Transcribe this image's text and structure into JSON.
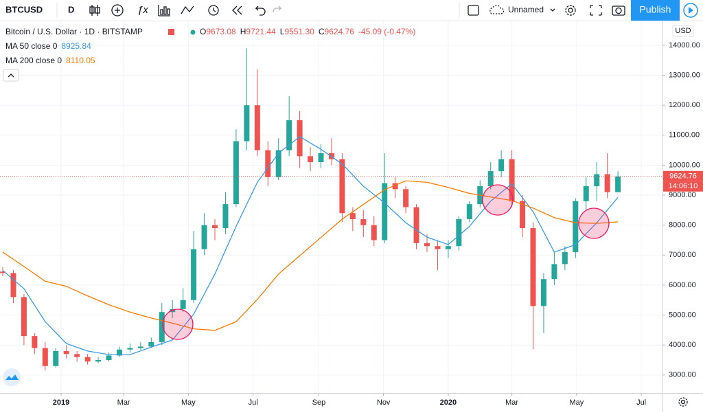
{
  "toolbar": {
    "symbol": "BTCUSD",
    "interval": "D",
    "layout_name": "Unnamed",
    "publish": "Publish"
  },
  "chart_data": {
    "type": "candlestick",
    "title": "Bitcoin / U.S. Dollar · 1D · BITSTAMP",
    "ohlc_legend": {
      "labels": [
        "O",
        "H",
        "L",
        "C"
      ],
      "values": [
        "9673.08",
        "9721.44",
        "9551.30",
        "9624.76"
      ],
      "change": "-45.09 (-0.47%)"
    },
    "currency": "USD",
    "countdown": "14:06:10",
    "up_color": "#26a69a",
    "down_color": "#ef5350",
    "candles": {
      "x": [
        -55,
        -45,
        -35,
        -25,
        -15,
        -5,
        5,
        15,
        25,
        35,
        45,
        55,
        65,
        75,
        85,
        95,
        105,
        115,
        125,
        135,
        145,
        155,
        165,
        175,
        185,
        195,
        205,
        215,
        225,
        235,
        245,
        255,
        265,
        275,
        285,
        295,
        305,
        315,
        325,
        335,
        345,
        355,
        365,
        375,
        385,
        395,
        405,
        415,
        425,
        435,
        445,
        455,
        465,
        475,
        485,
        495,
        505,
        515,
        525
      ],
      "open": [
        6450,
        6400,
        5600,
        4300,
        3900,
        3300,
        3800,
        3700,
        3600,
        3450,
        3500,
        3650,
        3850,
        3900,
        3950,
        4100,
        5100,
        5200,
        5500,
        7200,
        8000,
        7900,
        8700,
        10800,
        12000,
        10500,
        9600,
        10500,
        11500,
        10300,
        10100,
        10400,
        10200,
        8400,
        8200,
        8000,
        7500,
        9400,
        9200,
        8600,
        7400,
        7300,
        7200,
        7300,
        8200,
        8700,
        9300,
        9800,
        10200,
        8800,
        7900,
        5300,
        6200,
        6700,
        7100,
        8800,
        9300,
        9700,
        9100
      ],
      "high": [
        6600,
        6500,
        5700,
        4400,
        4100,
        3900,
        4000,
        3800,
        3700,
        3600,
        3750,
        3950,
        4050,
        4100,
        4250,
        5400,
        5500,
        5900,
        7800,
        8400,
        8200,
        9100,
        11200,
        13900,
        13200,
        10800,
        10900,
        12300,
        11800,
        10600,
        10700,
        10900,
        10400,
        8600,
        8500,
        8300,
        10400,
        9600,
        9300,
        8700,
        7700,
        7500,
        7500,
        8300,
        8800,
        9500,
        10100,
        10500,
        10500,
        9000,
        8100,
        6400,
        7100,
        7300,
        8900,
        9600,
        10100,
        10400,
        9800
      ],
      "low": [
        6300,
        5400,
        4000,
        3700,
        3150,
        3250,
        3550,
        3450,
        3350,
        3400,
        3450,
        3600,
        3750,
        3850,
        3900,
        4000,
        4900,
        5100,
        5400,
        7000,
        7500,
        7700,
        8600,
        10500,
        10300,
        9300,
        9500,
        10300,
        9900,
        9800,
        9900,
        10000,
        8100,
        7800,
        7600,
        7300,
        7400,
        8900,
        8400,
        7200,
        7100,
        6500,
        6900,
        7150,
        8100,
        8600,
        9200,
        9600,
        8600,
        7600,
        3860,
        4400,
        6000,
        6500,
        6900,
        8500,
        8800,
        8900,
        9550
      ],
      "close": [
        6400,
        5600,
        4300,
        3900,
        3300,
        3800,
        3700,
        3600,
        3450,
        3500,
        3650,
        3850,
        3900,
        3950,
        4100,
        5100,
        5200,
        5500,
        7200,
        8000,
        7900,
        8700,
        10800,
        12000,
        10500,
        9600,
        10500,
        11500,
        10300,
        10100,
        10400,
        10200,
        8400,
        8200,
        8000,
        7500,
        9400,
        9200,
        8600,
        7400,
        7300,
        7200,
        7300,
        8200,
        8700,
        9300,
        9800,
        10200,
        8800,
        7900,
        5300,
        6200,
        6700,
        7100,
        8800,
        9300,
        9700,
        9100,
        9624.76
      ]
    },
    "lines": [
      {
        "name": "MA 50 close 0",
        "last": 8925.84,
        "color": "#3a9be6",
        "x": [
          -55,
          -35,
          -15,
          5,
          25,
          45,
          65,
          85,
          105,
          125,
          145,
          165,
          185,
          205,
          225,
          245,
          265,
          285,
          305,
          325,
          345,
          365,
          385,
          405,
          425,
          445,
          465,
          485,
          505,
          525
        ],
        "values": [
          6490,
          5880,
          4780,
          4050,
          3800,
          3680,
          3680,
          3930,
          4170,
          5030,
          6370,
          7960,
          9430,
          10400,
          10950,
          10530,
          10040,
          9300,
          8740,
          8080,
          7600,
          7350,
          7960,
          8800,
          9380,
          8450,
          7100,
          7350,
          8080,
          8926
        ]
      },
      {
        "name": "MA 200 close 0",
        "last": 8110.05,
        "color": "#f57c00",
        "x": [
          -55,
          -35,
          -15,
          5,
          25,
          45,
          65,
          85,
          105,
          125,
          145,
          165,
          185,
          205,
          225,
          245,
          265,
          285,
          305,
          325,
          345,
          365,
          385,
          405,
          425,
          445,
          465,
          485,
          505,
          525
        ],
        "values": [
          7100,
          6620,
          6130,
          5960,
          5640,
          5345,
          5100,
          4900,
          4730,
          4540,
          4490,
          4780,
          5520,
          6370,
          6980,
          7590,
          8200,
          8690,
          9180,
          9480,
          9430,
          9260,
          9060,
          8940,
          8820,
          8570,
          8250,
          8080,
          8060,
          8110
        ]
      }
    ],
    "ylim": [
      2400,
      14800
    ],
    "yticks": [
      {
        "value": 3000,
        "label": "3000.00"
      },
      {
        "value": 4000,
        "label": "4000.00"
      },
      {
        "value": 5000,
        "label": "5000.00"
      },
      {
        "value": 6000,
        "label": "6000.00"
      },
      {
        "value": 7000,
        "label": "7000.00"
      },
      {
        "value": 8000,
        "label": "8000.00"
      },
      {
        "value": 9000,
        "label": "9000.00"
      },
      {
        "value": 10000,
        "label": "10000.00"
      },
      {
        "value": 11000,
        "label": "11000.00"
      },
      {
        "value": 12000,
        "label": "12000.00"
      },
      {
        "value": 13000,
        "label": "13000.00"
      },
      {
        "value": 14000,
        "label": "14000.00"
      }
    ],
    "xlim": [
      -57.6,
      567
    ],
    "xticks": [
      {
        "value": 0,
        "label": "2019"
      },
      {
        "value": 59,
        "label": "Mar"
      },
      {
        "value": 120,
        "label": "May"
      },
      {
        "value": 181,
        "label": "Jul"
      },
      {
        "value": 243,
        "label": "Sep"
      },
      {
        "value": 304,
        "label": "Nov"
      },
      {
        "value": 365,
        "label": "2020"
      },
      {
        "value": 425,
        "label": "Mar"
      },
      {
        "value": 486,
        "label": "May"
      },
      {
        "value": 547,
        "label": "Jul"
      }
    ],
    "grid": true
  }
}
